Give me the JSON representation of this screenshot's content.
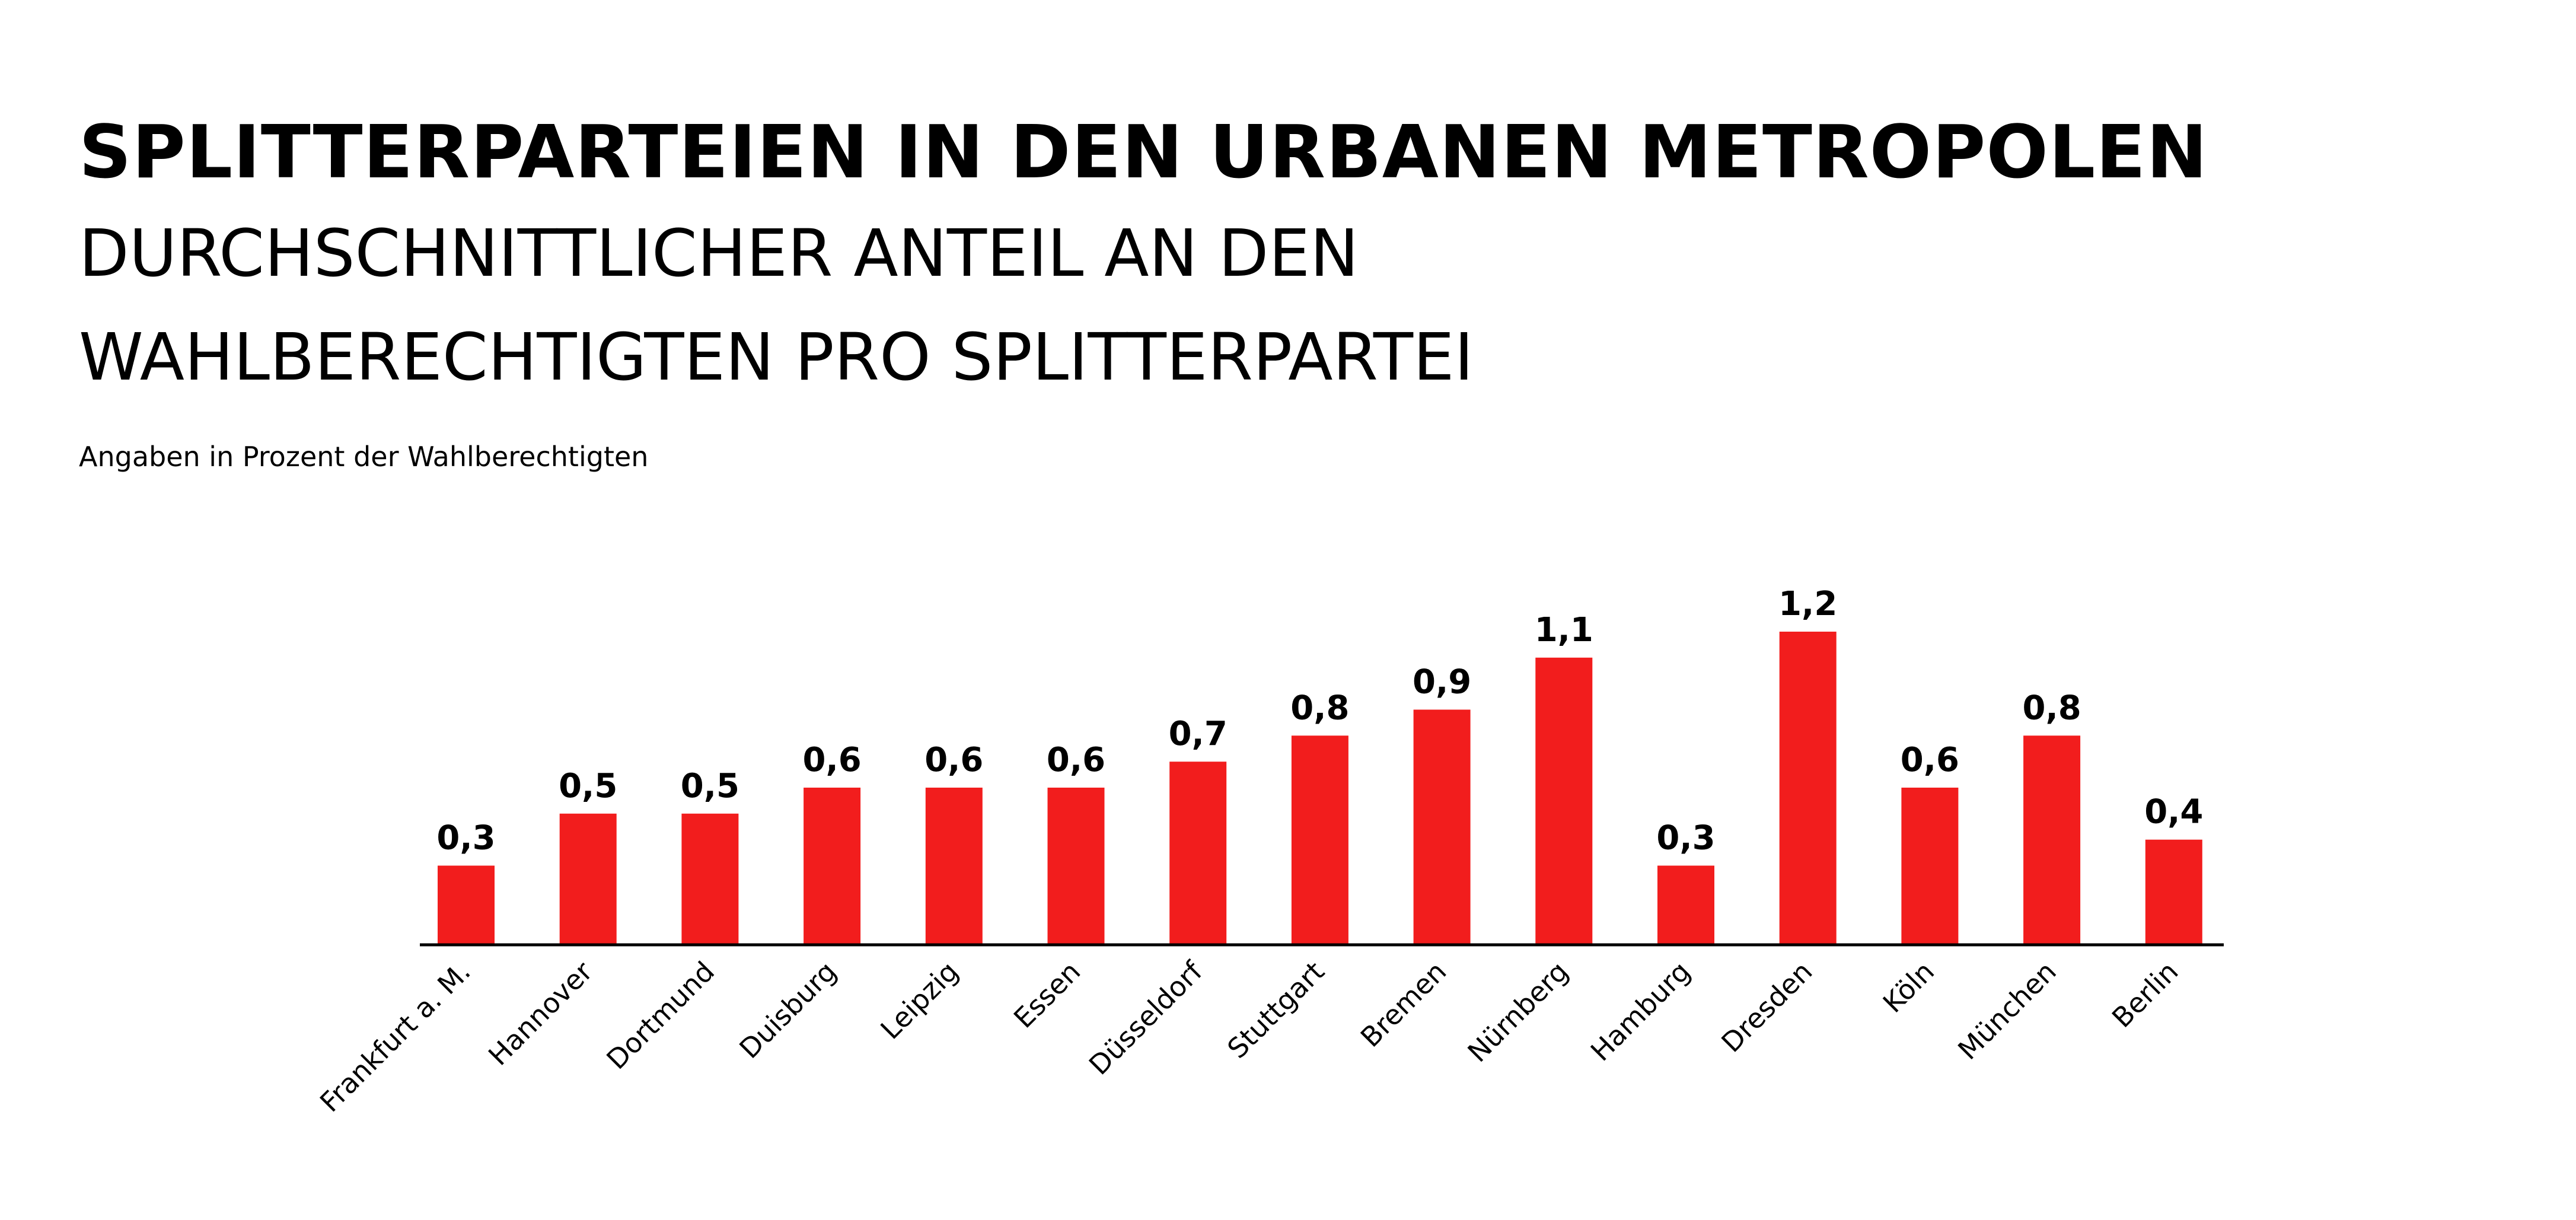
{
  "header": {
    "title": "SPLITTERPARTEIEN IN DEN URBANEN METROPOLEN",
    "subtitle_line1": "DURCHSCHNITTLICHER ANTEIL AN DEN",
    "subtitle_line2": "WAHLBERECHTIGTEN PRO SPLITTERPARTEI",
    "note": "Angaben in Prozent der Wahlberechtigten"
  },
  "colors": {
    "bar": "#f21d1d",
    "axis": "#000000"
  },
  "chart_data": {
    "type": "bar",
    "title": "SPLITTERPARTEIEN IN DEN URBANEN METROPOLEN",
    "subtitle": "DURCHSCHNITTLICHER ANTEIL AN DEN WAHLBERECHTIGTEN PRO SPLITTERPARTEI",
    "xlabel": "",
    "ylabel": "Angaben in Prozent der Wahlberechtigten",
    "categories": [
      "Frankfurt a. M.",
      "Hannover",
      "Dortmund",
      "Duisburg",
      "Leipzig",
      "Essen",
      "Düsseldorf",
      "Stuttgart",
      "Bremen",
      "Nürnberg",
      "Hamburg",
      "Dresden",
      "Köln",
      "München",
      "Berlin"
    ],
    "values": [
      0.3,
      0.5,
      0.5,
      0.6,
      0.6,
      0.6,
      0.7,
      0.8,
      0.9,
      1.1,
      0.3,
      1.2,
      0.6,
      0.8,
      0.4
    ],
    "value_labels": [
      "0,3",
      "0,5",
      "0,5",
      "0,6",
      "0,6",
      "0,6",
      "0,7",
      "0,8",
      "0,9",
      "1,1",
      "0,3",
      "1,2",
      "0,6",
      "0,8",
      "0,4"
    ],
    "ylim": [
      0,
      1.2
    ],
    "grid": false,
    "legend": "none"
  }
}
